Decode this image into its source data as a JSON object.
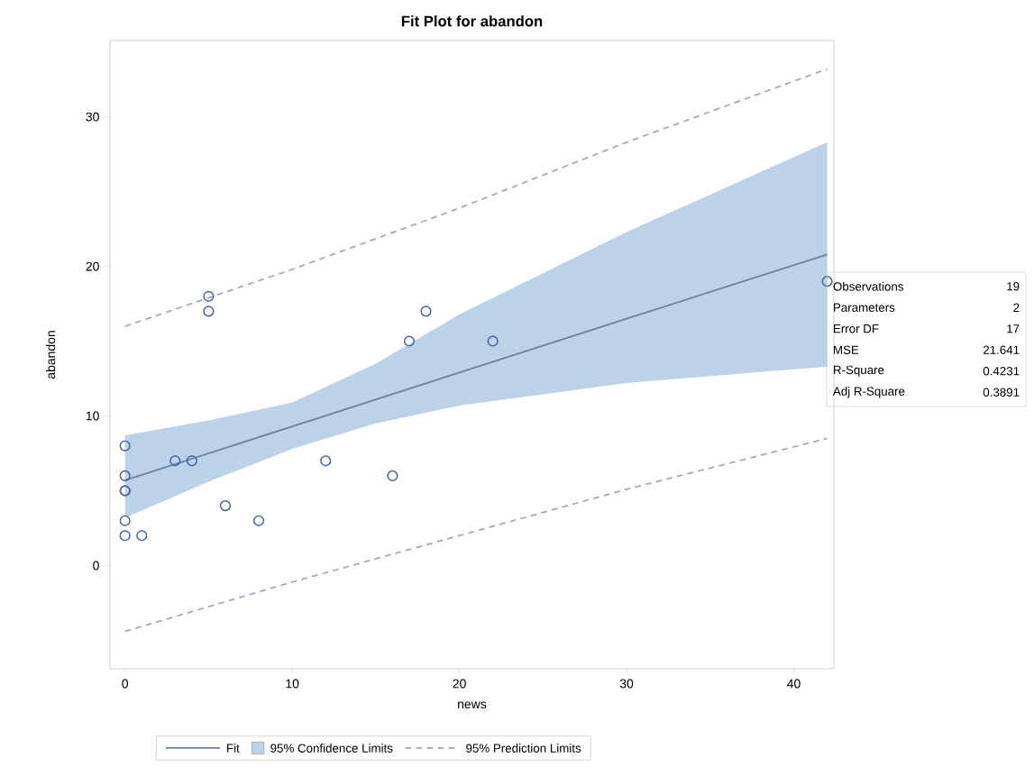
{
  "chart_data": {
    "type": "scatter",
    "title": "Fit Plot for abandon",
    "xlabel": "news",
    "ylabel": "abandon",
    "xlim": [
      -0.9,
      42.4
    ],
    "ylim": [
      -6.9,
      35.1
    ],
    "xticks": [
      0,
      10,
      20,
      30,
      40
    ],
    "yticks": [
      0,
      10,
      20,
      30
    ],
    "legend": "bottom",
    "marker": "circle",
    "series": [
      {
        "type": "line",
        "name": "Fit",
        "color": "#6882a0",
        "line_style": "solid",
        "marker": "none",
        "x": [
          0,
          5,
          10,
          15,
          20,
          30,
          42
        ],
        "values": [
          5.7,
          7.5,
          9.3,
          11.1,
          12.9,
          16.5,
          20.8
        ],
        "lower": [
          3.2,
          5.6,
          7.8,
          9.5,
          10.7,
          12.2,
          13.3
        ],
        "upper": [
          8.7,
          9.7,
          10.9,
          13.5,
          16.8,
          22.3,
          28.3
        ]
      },
      {
        "type": "line",
        "name": "95% Prediction Limits",
        "color": "#ab9fc8",
        "line_style": "dashed",
        "marker": "none",
        "x": [
          0,
          10,
          20,
          30,
          42
        ],
        "values": [
          16.0,
          19.8,
          23.9,
          28.3,
          33.2
        ]
      },
      {
        "type": "line",
        "color": "#ab9fc8",
        "line_style": "dashed",
        "marker": "none",
        "x": [
          0,
          10,
          20,
          30,
          42
        ],
        "values": [
          -4.4,
          -1.1,
          2.0,
          5.1,
          8.5
        ]
      },
      {
        "color": "#3f62a8",
        "x": [
          0,
          0,
          0,
          0,
          0,
          0,
          1,
          3,
          4,
          5,
          5,
          6,
          8,
          12,
          16,
          17,
          18,
          22,
          42
        ],
        "values": [
          8,
          6,
          5,
          5,
          3,
          2,
          2,
          7,
          7,
          18,
          17,
          4,
          3,
          7,
          6,
          15,
          17,
          15,
          19
        ]
      }
    ],
    "annotations": [
      "Observations",
      "19",
      "Parameters",
      "2",
      "Error DF",
      "17",
      "MSE",
      "21.641",
      "R-Square",
      "0.4231",
      "Adj R-Square",
      "0.3891",
      "95% Confidence Limits"
    ]
  }
}
